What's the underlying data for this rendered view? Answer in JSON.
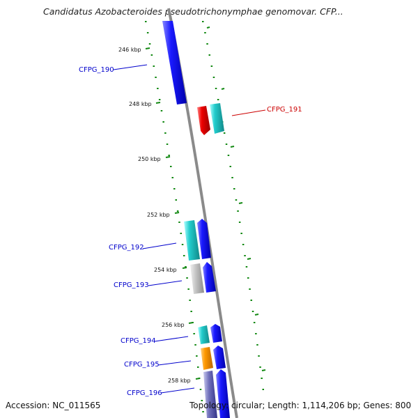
{
  "title": "Candidatus Azobacteroides pseudotrichonymphae genomovar. CFP...",
  "footer": {
    "accession": "Accession: NC_011565",
    "topology": "Topology: circular; Length: 1,114,206 bp; Genes: 800"
  },
  "ticks": [
    {
      "kbp": 246,
      "label": "246 kbp"
    },
    {
      "kbp": 248,
      "label": "248 kbp"
    },
    {
      "kbp": 250,
      "label": "250 kbp"
    },
    {
      "kbp": 252,
      "label": "252 kbp"
    },
    {
      "kbp": 254,
      "label": "254 kbp"
    },
    {
      "kbp": 256,
      "label": "256 kbp"
    },
    {
      "kbp": 258,
      "label": "258 kbp"
    }
  ],
  "genes": [
    {
      "name": "CFPG_190",
      "side": "left",
      "color": "#1a1aff"
    },
    {
      "name": "CFPG_191",
      "side": "right",
      "color": "#e00000"
    },
    {
      "name": "CFPG_192",
      "side": "left",
      "color": "#1a1aff"
    },
    {
      "name": "CFPG_193",
      "side": "left",
      "color": "#1a1aff"
    },
    {
      "name": "CFPG_194",
      "side": "left",
      "color": "#1a1aff"
    },
    {
      "name": "CFPG_195",
      "side": "left",
      "color": "#1a1aff"
    },
    {
      "name": "CFPG_196",
      "side": "left",
      "color": "#1a1aff"
    }
  ],
  "colors": {
    "dna_line": "#8a8a8a",
    "tick_green": "#118811",
    "forward_gene": "#0000ee",
    "cyan_gene": "#11cccc",
    "gray_gene": "#b8b8b8",
    "red_gene": "#ee0000",
    "orange_gene": "#ff9900",
    "purple_gene": "#6a6ab0"
  }
}
